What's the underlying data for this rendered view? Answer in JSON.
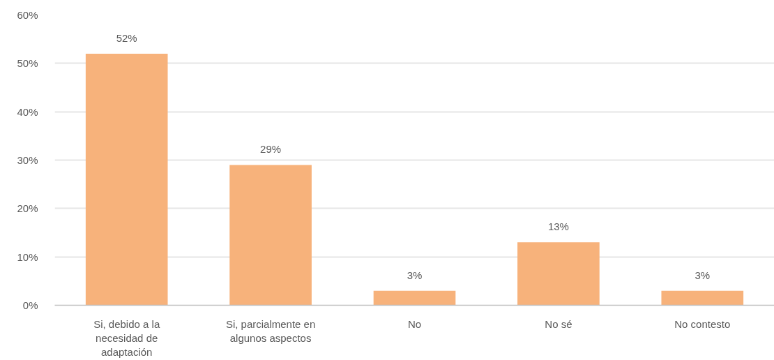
{
  "chart_data": {
    "type": "bar",
    "categories": [
      "Si, debido a la necesidad de adaptación",
      "Si, parcialmente en algunos aspectos",
      "No",
      "No sé",
      "No contesto"
    ],
    "values": [
      52,
      29,
      3,
      13,
      3
    ],
    "value_labels": [
      "52%",
      "29%",
      "3%",
      "13%",
      "3%"
    ],
    "color": "#f7b27b",
    "ylim": [
      0,
      60
    ],
    "yticks": [
      {
        "value": 0,
        "label": "0%"
      },
      {
        "value": 10,
        "label": "10%"
      },
      {
        "value": 20,
        "label": "20%"
      },
      {
        "value": 30,
        "label": "30%"
      },
      {
        "value": 40,
        "label": "40%"
      },
      {
        "value": 50,
        "label": "50%"
      },
      {
        "value": 60,
        "label": "60%"
      }
    ],
    "grid": "y"
  }
}
